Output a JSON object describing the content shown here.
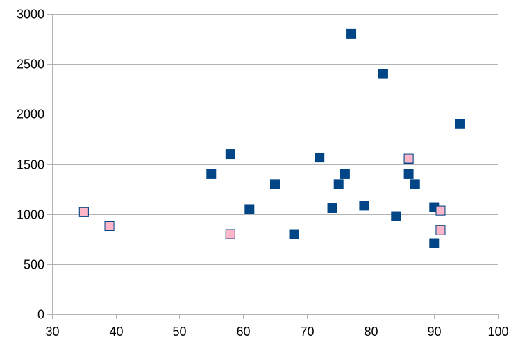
{
  "chart_data": {
    "type": "scatter",
    "title": "",
    "xlabel": "",
    "ylabel": "",
    "xlim": [
      30,
      100
    ],
    "ylim": [
      0,
      3000
    ],
    "x_ticks": [
      30,
      40,
      50,
      60,
      70,
      80,
      90,
      100
    ],
    "y_ticks": [
      0,
      500,
      1000,
      1500,
      2000,
      2500,
      3000
    ],
    "x_tick_labels": [
      "30",
      "40",
      "50",
      "60",
      "70",
      "80",
      "90",
      "100"
    ],
    "y_tick_labels": [
      "0",
      "500",
      "1000",
      "1500",
      "2000",
      "2500",
      "3000"
    ],
    "grid": {
      "horizontal": true,
      "vertical": false
    },
    "legend": "none",
    "series": [
      {
        "color": "#004586",
        "marker": "square",
        "points": [
          {
            "x": 35,
            "y": 1020
          },
          {
            "x": 39,
            "y": 880
          },
          {
            "x": 55,
            "y": 1400
          },
          {
            "x": 58,
            "y": 1600
          },
          {
            "x": 58,
            "y": 800
          },
          {
            "x": 61,
            "y": 1050
          },
          {
            "x": 65,
            "y": 1300
          },
          {
            "x": 68,
            "y": 800
          },
          {
            "x": 72,
            "y": 1565
          },
          {
            "x": 74,
            "y": 1060
          },
          {
            "x": 75,
            "y": 1300
          },
          {
            "x": 76,
            "y": 1400
          },
          {
            "x": 77,
            "y": 2800
          },
          {
            "x": 79,
            "y": 1085
          },
          {
            "x": 82,
            "y": 2400
          },
          {
            "x": 84,
            "y": 980
          },
          {
            "x": 86,
            "y": 1400
          },
          {
            "x": 86,
            "y": 1550
          },
          {
            "x": 87,
            "y": 1300
          },
          {
            "x": 90,
            "y": 1070
          },
          {
            "x": 90,
            "y": 710
          },
          {
            "x": 91,
            "y": 1035
          },
          {
            "x": 91,
            "y": 840
          },
          {
            "x": 94,
            "y": 1900
          }
        ]
      },
      {
        "color": "#ffb6c8",
        "marker": "square",
        "points": [
          {
            "x": 35,
            "y": 1020
          },
          {
            "x": 39,
            "y": 880
          },
          {
            "x": 58,
            "y": 800
          },
          {
            "x": 86,
            "y": 1555
          },
          {
            "x": 91,
            "y": 1035
          },
          {
            "x": 91,
            "y": 840
          }
        ]
      }
    ]
  },
  "colors": {
    "grid": "#b3b3b3",
    "axis": "#b3b3b3",
    "marker_outline": "#004586"
  }
}
